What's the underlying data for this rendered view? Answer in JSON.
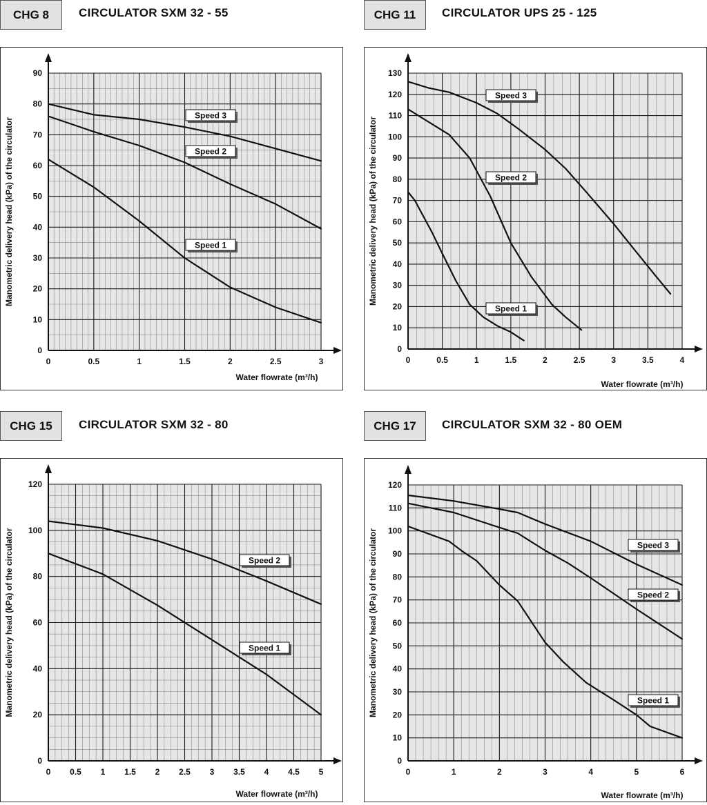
{
  "panels": [
    {
      "tag": "CHG 8",
      "title": "CIRCULATOR SXM 32 - 55",
      "chart_data": {
        "type": "line",
        "xlabel": "Water flowrate (m³/h)",
        "ylabel": "Manometric delivery head (kPa) of the circulator",
        "xlim": [
          0,
          3
        ],
        "ylim": [
          0,
          90
        ],
        "xticks": [
          "0",
          "0.5",
          "1",
          "1.5",
          "2",
          "2.5",
          "3"
        ],
        "yticks": [
          "0",
          "10",
          "20",
          "30",
          "40",
          "50",
          "60",
          "70",
          "80",
          "90"
        ],
        "grid": true,
        "series": [
          {
            "name": "Speed 3",
            "x": [
              0,
              0.5,
              1,
              1.5,
              2,
              2.5,
              3
            ],
            "y": [
              80,
              76.5,
              75,
              72.5,
              69.5,
              65.5,
              61.5
            ]
          },
          {
            "name": "Speed 2",
            "x": [
              0,
              0.5,
              1,
              1.5,
              2,
              2.5,
              3
            ],
            "y": [
              76,
              71,
              66.5,
              61,
              54,
              47.5,
              39.5
            ]
          },
          {
            "name": "Speed 1",
            "x": [
              0,
              0.5,
              1,
              1.5,
              2,
              2.5,
              3
            ],
            "y": [
              62,
              53,
              42,
              30,
              20.5,
              14,
              9
            ]
          }
        ]
      }
    },
    {
      "tag": "CHG 11",
      "title": "CIRCULATOR UPS 25 - 125",
      "chart_data": {
        "type": "line",
        "xlabel": "Water flowrate (m³/h)",
        "ylabel": "Manometric delivery head (kPa) of the circulator",
        "xlim": [
          0,
          4
        ],
        "ylim": [
          0,
          130
        ],
        "xticks": [
          "0",
          "0.5",
          "1",
          "1.5",
          "2",
          "2.5",
          "3",
          "3.5",
          "4"
        ],
        "yticks": [
          "0",
          "10",
          "20",
          "30",
          "40",
          "50",
          "60",
          "70",
          "80",
          "90",
          "100",
          "110",
          "120",
          "130"
        ],
        "grid": true,
        "series": [
          {
            "name": "Speed 3",
            "x": [
              0,
              0.3,
              0.6,
              1.0,
              1.3,
              1.6,
              2.0,
              2.3,
              2.6,
              3.0,
              3.3,
              3.6,
              3.83
            ],
            "y": [
              126,
              123,
              121,
              116,
              111,
              104,
              94,
              85,
              74,
              59,
              47,
              35,
              26
            ]
          },
          {
            "name": "Speed 2",
            "x": [
              0,
              0.3,
              0.6,
              0.9,
              1.2,
              1.5,
              1.8,
              2.1,
              2.3,
              2.53
            ],
            "y": [
              113,
              107,
              101,
              90,
              72,
              50,
              34,
              21,
              15,
              9
            ]
          },
          {
            "name": "Speed 1",
            "x": [
              0,
              0.1,
              0.2,
              0.35,
              0.5,
              0.7,
              0.9,
              1.1,
              1.3,
              1.5,
              1.69
            ],
            "y": [
              74,
              70,
              64,
              55,
              45,
              32,
              21,
              15,
              11,
              8,
              4
            ]
          }
        ]
      }
    },
    {
      "tag": "CHG 15",
      "title": "CIRCULATOR SXM 32 - 80",
      "chart_data": {
        "type": "line",
        "xlabel": "Water flowrate (m³/h)",
        "ylabel": "Manometric delivery head (kPa) of the circulator",
        "xlim": [
          0,
          5
        ],
        "ylim": [
          0,
          120
        ],
        "xticks": [
          "0",
          "0.5",
          "1",
          "1.5",
          "2",
          "2.5",
          "3",
          "3.5",
          "4",
          "4.5",
          "5"
        ],
        "yticks": [
          "0",
          "20",
          "40",
          "60",
          "80",
          "100",
          "120"
        ],
        "grid": true,
        "series": [
          {
            "name": "Speed 2",
            "x": [
              0,
              1,
              2,
              3,
              4,
              5
            ],
            "y": [
              104,
              101,
              95.5,
              87.5,
              78,
              68
            ]
          },
          {
            "name": "Speed 1",
            "x": [
              0,
              1,
              2,
              3,
              4,
              5
            ],
            "y": [
              90,
              81,
              67.5,
              52.5,
              37.5,
              20
            ]
          }
        ]
      }
    },
    {
      "tag": "CHG 17",
      "title": "CIRCULATOR SXM 32 - 80 OEM",
      "chart_data": {
        "type": "line",
        "xlabel": "Water flowrate (m³/h)",
        "ylabel": "Manometric delivery head (kPa) of the circulator",
        "xlim": [
          0,
          6
        ],
        "ylim": [
          0,
          120
        ],
        "xticks": [
          "0",
          "1",
          "2",
          "3",
          "4",
          "5",
          "6"
        ],
        "yticks": [
          "0",
          "10",
          "20",
          "30",
          "40",
          "50",
          "60",
          "70",
          "80",
          "90",
          "100",
          "110",
          "120"
        ],
        "grid": true,
        "series": [
          {
            "name": "Speed 3",
            "x": [
              0,
              1,
              2,
              2.4,
              3,
              4,
              5,
              6
            ],
            "y": [
              115.5,
              113,
              109.5,
              108,
              103,
              95.5,
              85.5,
              76.5
            ]
          },
          {
            "name": "Speed 2",
            "x": [
              0,
              1,
              2,
              2.4,
              3,
              3.5,
              4,
              5,
              6
            ],
            "y": [
              112,
              108,
              101.5,
              99,
              91.5,
              86,
              79.5,
              66,
              53
            ]
          },
          {
            "name": "Speed 1",
            "x": [
              0,
              0.9,
              1.2,
              1.5,
              2,
              2.4,
              3,
              3.4,
              3.9,
              4.5,
              5,
              5.3,
              6
            ],
            "y": [
              102,
              95.5,
              91,
              87,
              76.5,
              69.5,
              51.5,
              43,
              34,
              26.5,
              20,
              15,
              10
            ]
          }
        ]
      }
    }
  ]
}
